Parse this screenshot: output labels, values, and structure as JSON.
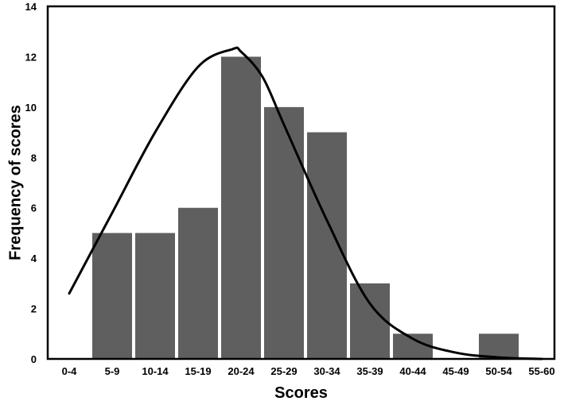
{
  "chart_data": {
    "type": "bar",
    "categories": [
      "0-4",
      "5-9",
      "10-14",
      "15-19",
      "20-24",
      "25-29",
      "30-34",
      "35-39",
      "40-44",
      "45-49",
      "50-54",
      "55-60"
    ],
    "values": [
      0,
      5,
      5,
      6,
      12,
      10,
      9,
      3,
      1,
      0,
      1,
      0
    ],
    "overlay_curve": {
      "type": "line",
      "smooth": true,
      "x": [
        0,
        1,
        2,
        3,
        3.8,
        4,
        4.5,
        5,
        6,
        7,
        8,
        9,
        10,
        11
      ],
      "y": [
        2.6,
        5.8,
        9.0,
        11.6,
        12.3,
        12.2,
        11.2,
        9.3,
        5.5,
        2.2,
        0.8,
        0.25,
        0.06,
        0.0
      ]
    },
    "xlabel": "Scores",
    "ylabel": "Frequency of scores",
    "ylim": [
      0,
      14
    ],
    "yticks": [
      0,
      2,
      4,
      6,
      8,
      10,
      12,
      14
    ],
    "grid": false,
    "legend": "none",
    "colors": {
      "bar": "#5f5f5f",
      "curve": "#000000",
      "axis": "#000000",
      "background": "#ffffff"
    }
  }
}
